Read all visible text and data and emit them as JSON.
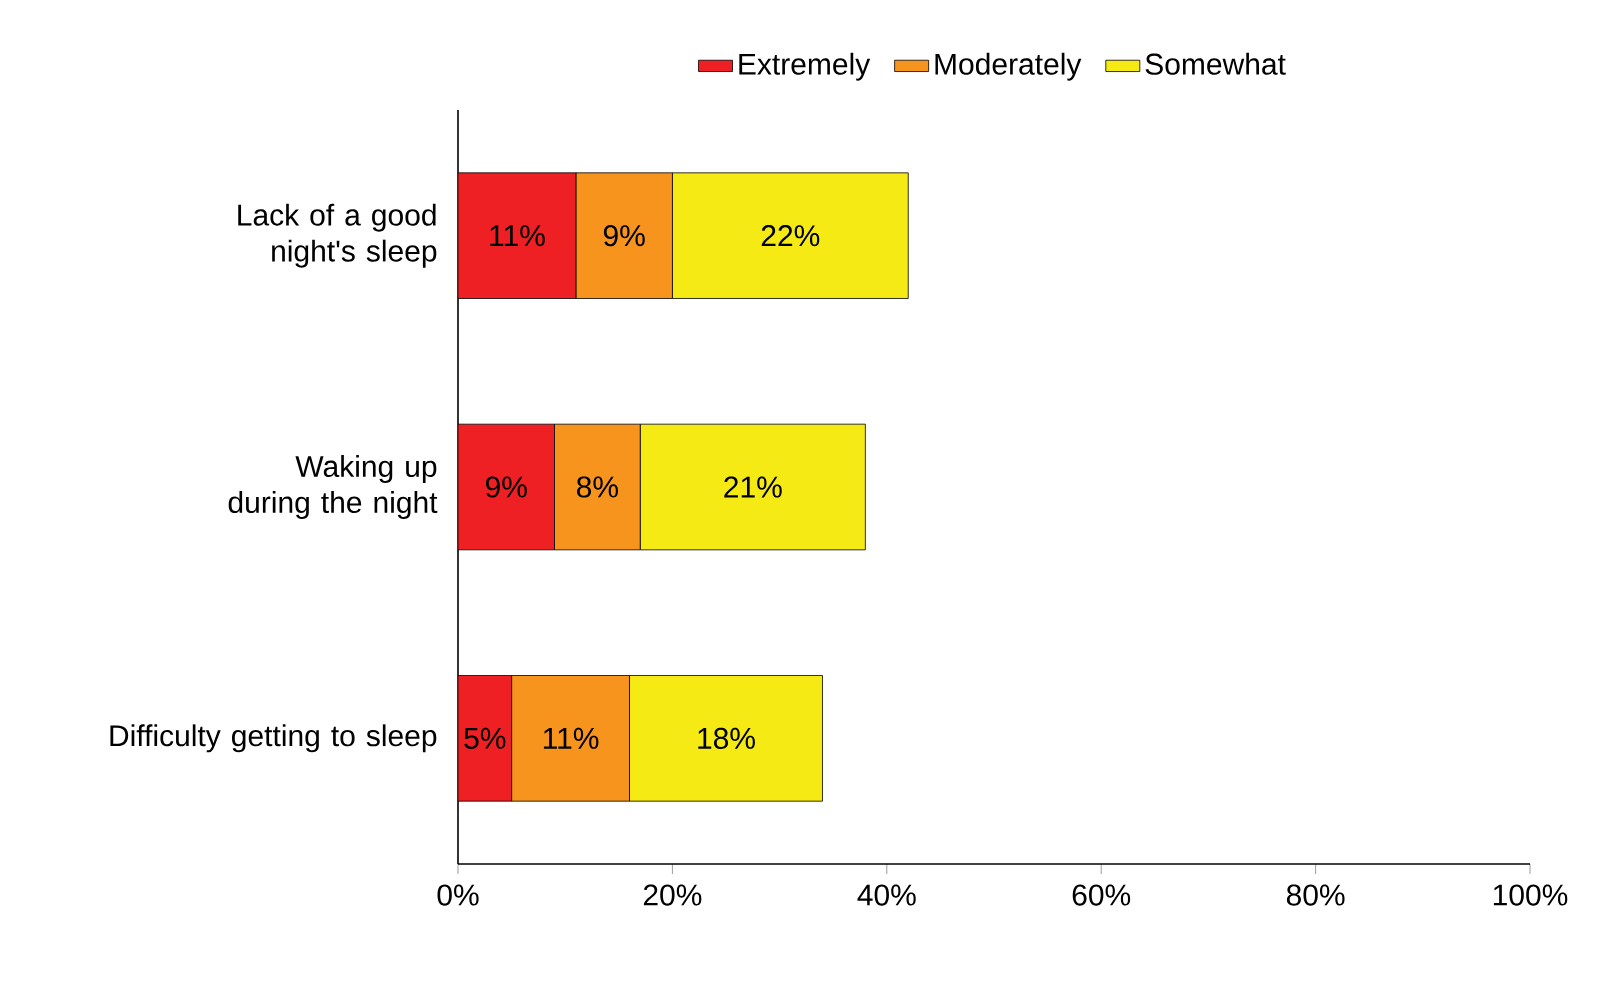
{
  "chart_data": {
    "type": "bar",
    "orientation": "horizontal",
    "stacked": true,
    "categories": [
      "Lack of a good night's sleep",
      "Waking up during the night",
      "Difficulty getting to sleep"
    ],
    "series": [
      {
        "name": "Extremely",
        "color": "#ee2024",
        "values": [
          11,
          9,
          5
        ],
        "value_labels": [
          "11%",
          "9%",
          "5%"
        ]
      },
      {
        "name": "Moderately",
        "color": "#f7941d",
        "values": [
          9,
          8,
          11
        ],
        "value_labels": [
          "9%",
          "8%",
          "11%"
        ]
      },
      {
        "name": "Somewhat",
        "color": "#f5ea14",
        "values": [
          22,
          21,
          18
        ],
        "value_labels": [
          "22%",
          "21%",
          "18%"
        ]
      }
    ],
    "xlim": [
      0,
      100
    ],
    "xticks": [
      {
        "value": 0,
        "label": "0%"
      },
      {
        "value": 20,
        "label": "20%"
      },
      {
        "value": 40,
        "label": "40%"
      },
      {
        "value": 60,
        "label": "60%"
      },
      {
        "value": 80,
        "label": "80%"
      },
      {
        "value": 100,
        "label": "100%"
      }
    ],
    "grid": false,
    "legend": "top"
  }
}
